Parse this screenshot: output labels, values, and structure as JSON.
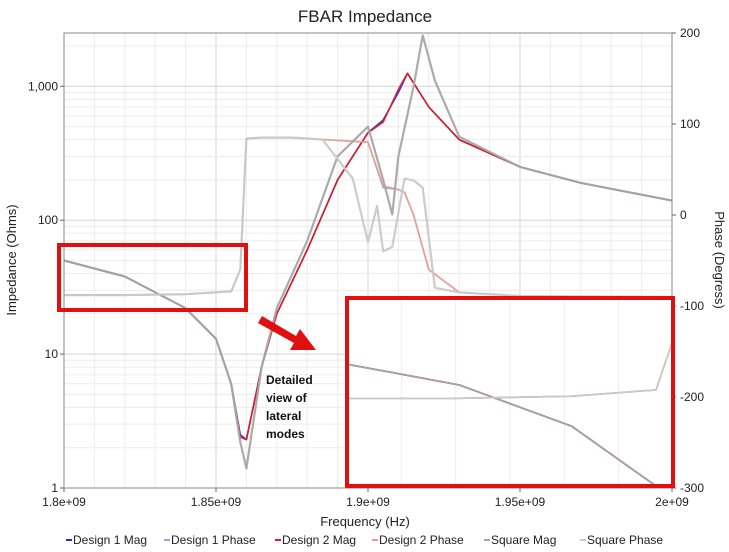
{
  "chart_data": {
    "type": "line",
    "title": "FBAR Impedance",
    "xlabel": "Frequency (Hz)",
    "ylabel_left": "Impedance (Ohms)",
    "ylabel_right": "Phase (Degress)",
    "xlim": [
      1800000000.0,
      2000000000.0
    ],
    "ylim_left": [
      1,
      2500
    ],
    "left_scale": "log",
    "ylim_right": [
      -300,
      200
    ],
    "x_ticks": [
      "1.8e+09",
      "1.85e+09",
      "1.9e+09",
      "1.95e+09",
      "2e+09"
    ],
    "y_left_ticks": [
      "1",
      "10",
      "100",
      "1,000"
    ],
    "y_right_ticks": [
      "200",
      "100",
      "0",
      "-100",
      "-200",
      "-300"
    ],
    "grid": true,
    "legend_position": "bottom",
    "annotation": [
      "Detailed",
      "view of",
      "lateral",
      "modes"
    ],
    "series": [
      {
        "name": "Design 1 Mag",
        "axis": "left",
        "color": "#1f2fd6",
        "style": "dashed",
        "x": [
          1800000000.0,
          1820000000.0,
          1840000000.0,
          1850000000.0,
          1855000000.0,
          1858000000.0,
          1860000000.0,
          1865000000.0,
          1870000000.0,
          1880000000.0,
          1890000000.0,
          1900000000.0,
          1905000000.0,
          1910000000.0,
          1913000000.0,
          1920000000.0,
          1930000000.0,
          1950000000.0,
          1970000000.0,
          2000000000.0
        ],
        "y": [
          50,
          38,
          22,
          13,
          6,
          2.5,
          2.3,
          8,
          20,
          60,
          200,
          450,
          560,
          900,
          1250,
          700,
          400,
          250,
          190,
          140
        ]
      },
      {
        "name": "Design 1 Phase",
        "axis": "right",
        "color": "#8fa7d6",
        "style": "dashed",
        "x": [
          1800000000.0,
          1820000000.0,
          1840000000.0,
          1855000000.0,
          1858000000.0,
          1860000000.0,
          1865000000.0,
          1875000000.0,
          1885000000.0,
          1900000000.0,
          1905000000.0,
          1910000000.0,
          1912000000.0,
          1915000000.0,
          1920000000.0,
          1930000000.0,
          1950000000.0,
          2000000000.0
        ],
        "y": [
          -88,
          -88,
          -87,
          -84,
          -60,
          84,
          85,
          85,
          83,
          80,
          30,
          28,
          25,
          0,
          -60,
          -85,
          -89,
          -90
        ]
      },
      {
        "name": "Design 2 Mag",
        "axis": "left",
        "color": "#e41a1c",
        "style": "dashed",
        "x": [
          1800000000.0,
          1820000000.0,
          1840000000.0,
          1850000000.0,
          1855000000.0,
          1858000000.0,
          1860000000.0,
          1865000000.0,
          1870000000.0,
          1880000000.0,
          1890000000.0,
          1900000000.0,
          1905000000.0,
          1910000000.0,
          1913000000.0,
          1920000000.0,
          1930000000.0,
          1950000000.0,
          1970000000.0,
          2000000000.0
        ],
        "y": [
          50,
          38,
          22,
          13,
          6,
          2.4,
          2.3,
          8,
          20,
          60,
          200,
          450,
          540,
          950,
          1250,
          700,
          400,
          250,
          190,
          140
        ]
      },
      {
        "name": "Design 2 Phase",
        "axis": "right",
        "color": "#f29b8e",
        "style": "dashed",
        "x": [
          1800000000.0,
          1820000000.0,
          1840000000.0,
          1855000000.0,
          1858000000.0,
          1860000000.0,
          1865000000.0,
          1875000000.0,
          1885000000.0,
          1900000000.0,
          1905000000.0,
          1910000000.0,
          1912000000.0,
          1915000000.0,
          1920000000.0,
          1930000000.0,
          1950000000.0,
          2000000000.0
        ],
        "y": [
          -88,
          -88,
          -87,
          -84,
          -60,
          84,
          85,
          85,
          83,
          80,
          32,
          28,
          25,
          0,
          -60,
          -85,
          -89,
          -90
        ]
      },
      {
        "name": "Square Mag",
        "axis": "left",
        "color": "#a6a6a6",
        "style": "dashed",
        "x": [
          1800000000.0,
          1820000000.0,
          1840000000.0,
          1850000000.0,
          1855000000.0,
          1858000000.0,
          1860000000.0,
          1865000000.0,
          1870000000.0,
          1880000000.0,
          1890000000.0,
          1900000000.0,
          1905000000.0,
          1908000000.0,
          1910000000.0,
          1915000000.0,
          1918000000.0,
          1922000000.0,
          1930000000.0,
          1950000000.0,
          1970000000.0,
          2000000000.0
        ],
        "y": [
          50,
          38,
          22,
          13,
          6,
          2.2,
          1.4,
          8,
          22,
          70,
          300,
          500,
          200,
          110,
          300,
          1000,
          2400,
          1100,
          420,
          250,
          190,
          140
        ]
      },
      {
        "name": "Square Phase",
        "axis": "right",
        "color": "#c9c9c9",
        "style": "dashed",
        "x": [
          1800000000.0,
          1820000000.0,
          1840000000.0,
          1855000000.0,
          1858000000.0,
          1860000000.0,
          1865000000.0,
          1875000000.0,
          1885000000.0,
          1895000000.0,
          1900000000.0,
          1903000000.0,
          1905000000.0,
          1908000000.0,
          1912000000.0,
          1915000000.0,
          1918000000.0,
          1922000000.0,
          1930000000.0,
          1950000000.0,
          2000000000.0
        ],
        "y": [
          -88,
          -88,
          -87,
          -84,
          -60,
          84,
          85,
          85,
          83,
          40,
          -30,
          10,
          -40,
          -35,
          40,
          38,
          30,
          -80,
          -85,
          -89,
          -90
        ]
      }
    ]
  }
}
